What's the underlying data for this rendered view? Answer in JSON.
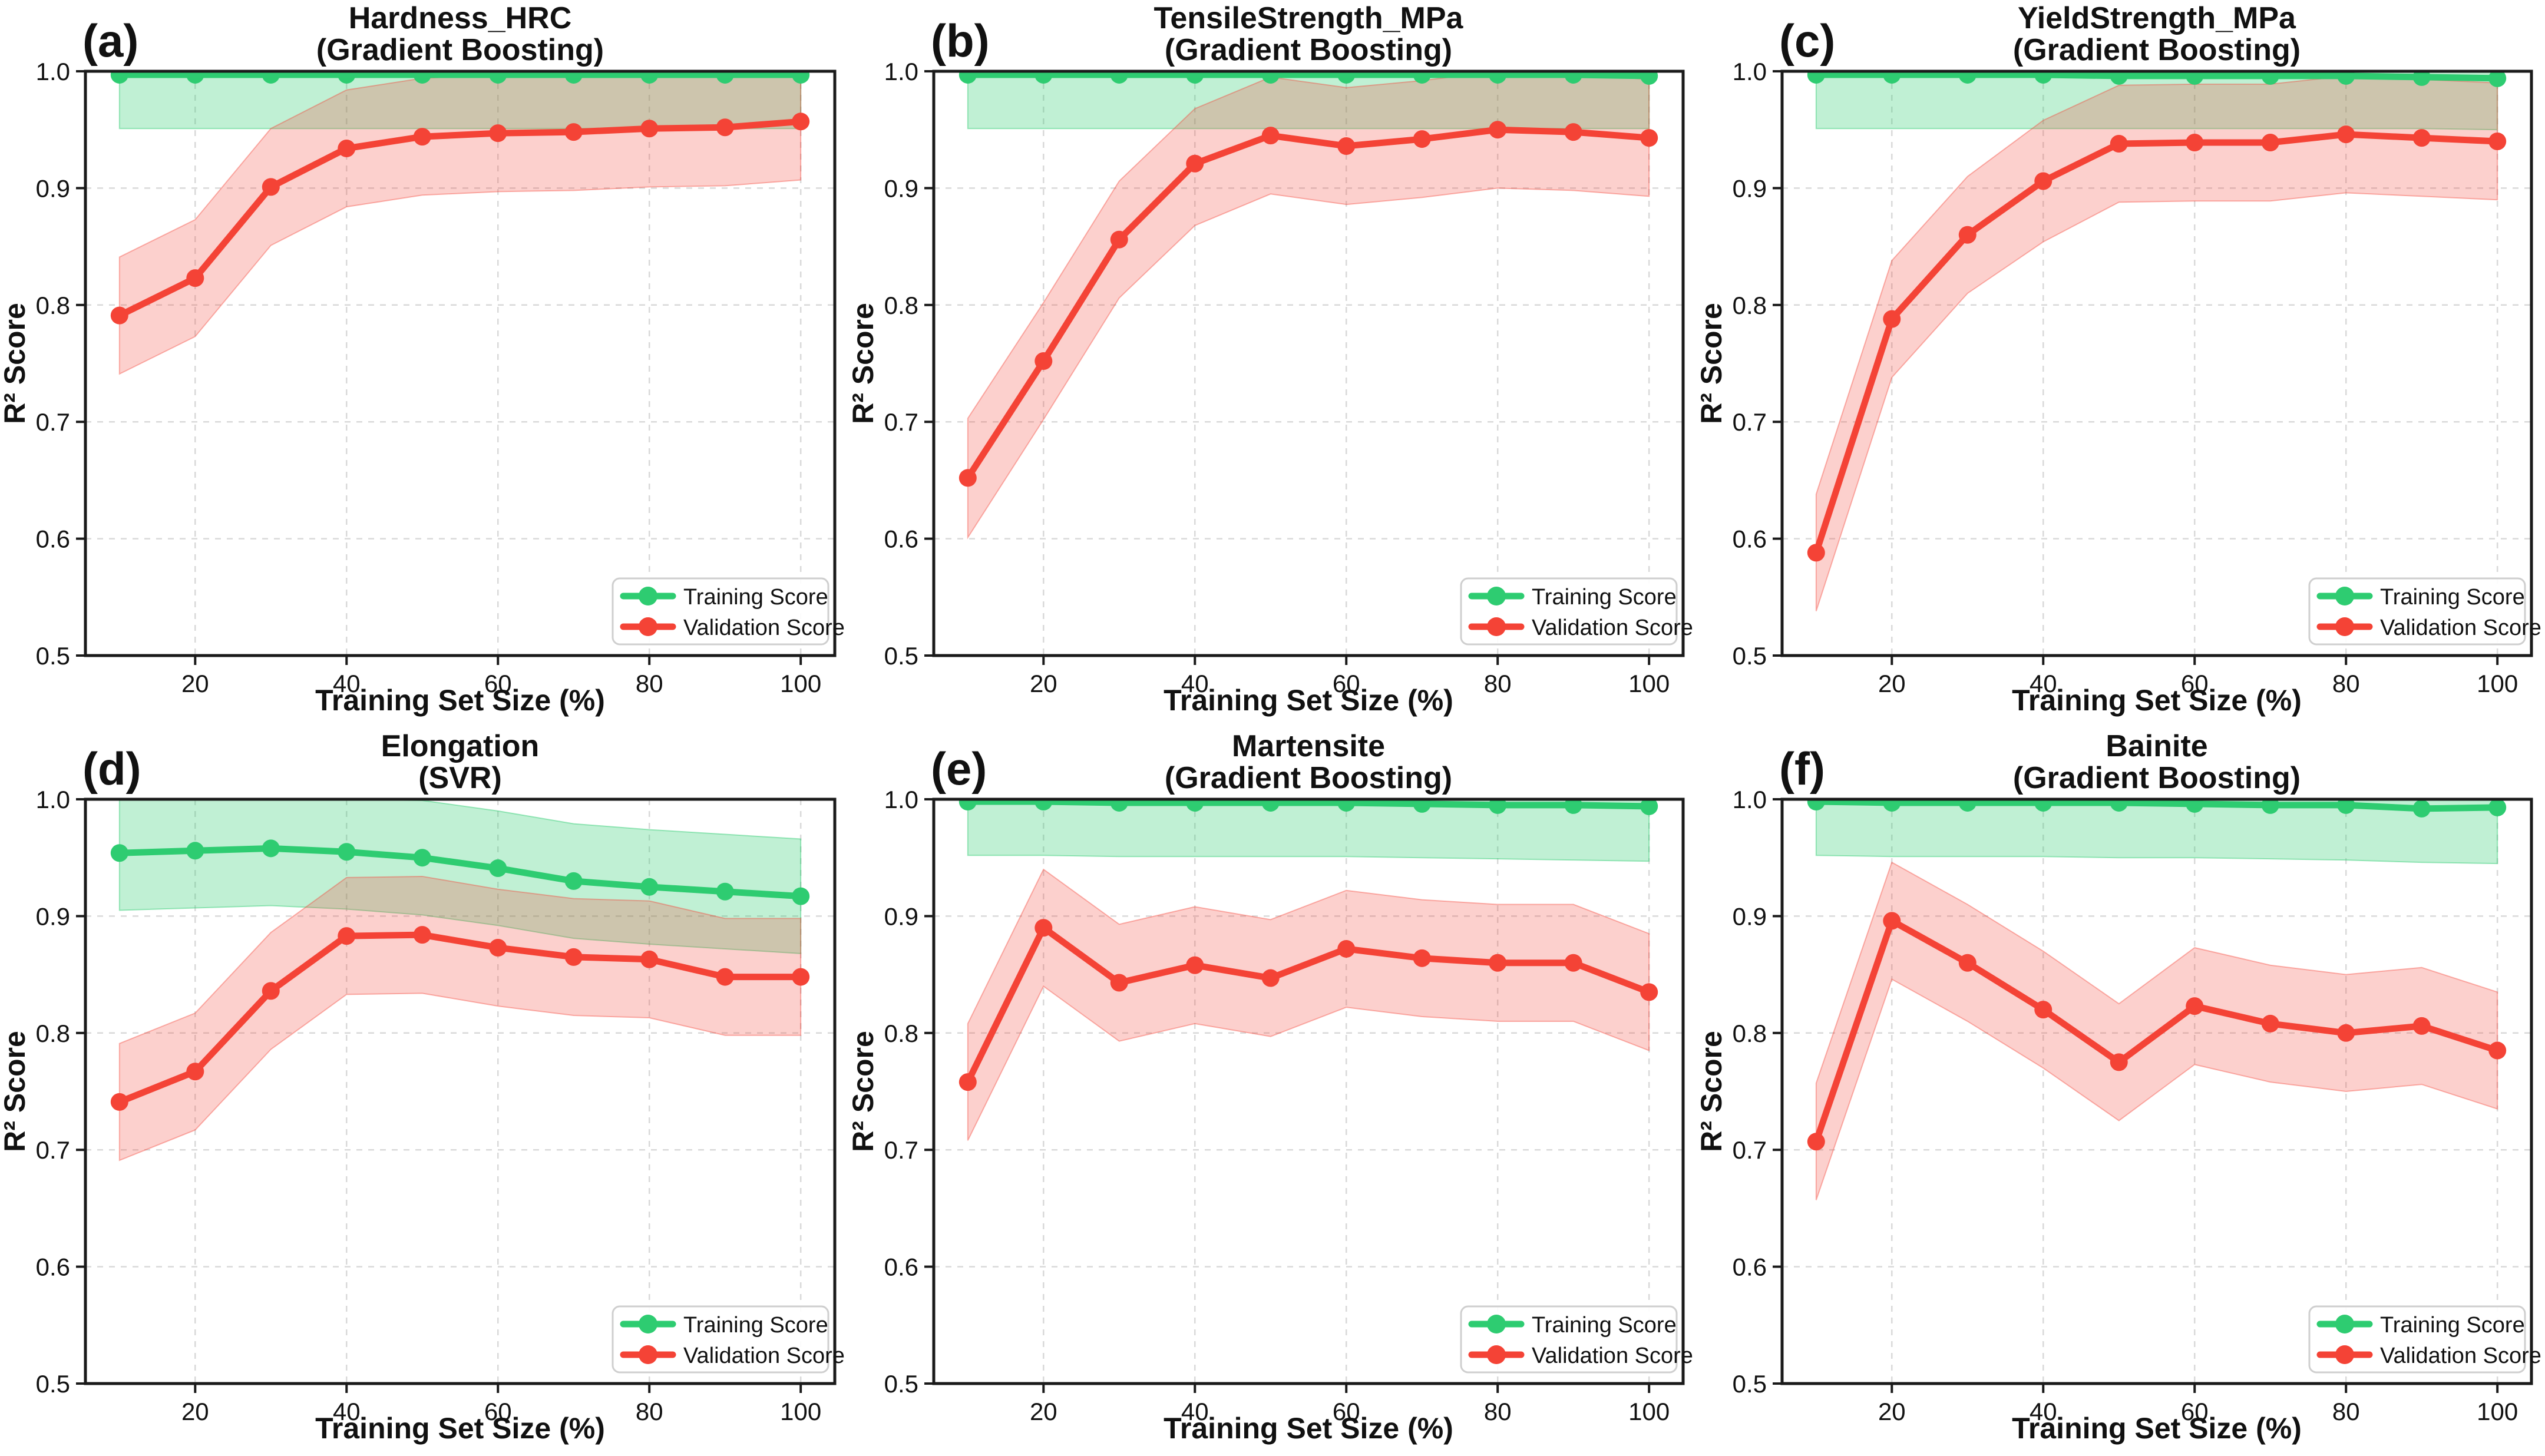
{
  "figure": {
    "background": "#ffffff",
    "colors": {
      "training": "#2ecc71",
      "validation": "#f44336",
      "training_band": "rgba(46,204,113,0.30)",
      "validation_band": "rgba(244,67,54,0.25)",
      "training_band_edge": "rgba(46,204,113,0.45)",
      "validation_band_edge": "rgba(244,67,54,0.40)",
      "grid": "#d9d9d9",
      "spine": "#1a1a1a",
      "legend_border": "#cfcfcf",
      "text": "#111111"
    }
  },
  "axes": {
    "xlabel": "Training Set Size (%)",
    "ylabel": "R² Score",
    "x_ticks": [
      20,
      40,
      60,
      80,
      100
    ],
    "y_ticks": [
      0.5,
      0.6,
      0.7,
      0.8,
      0.9,
      1.0
    ],
    "xlim": [
      5.5,
      104.5
    ],
    "ylim": [
      0.5,
      1.0
    ],
    "grid": true,
    "grid_style": "dashed",
    "legend_position": "lower right"
  },
  "legend": {
    "entries": [
      "Training Score",
      "Validation Score"
    ]
  },
  "x": [
    10,
    20,
    30,
    40,
    50,
    60,
    70,
    80,
    90,
    100
  ],
  "chart_data": [
    {
      "id": "a",
      "label": "(a)",
      "title": "Hardness_HRC",
      "subtitle": "(Gradient Boosting)",
      "type": "line",
      "series": [
        {
          "name": "Training Score",
          "color_key": "training",
          "values": [
            0.997,
            0.997,
            0.997,
            0.997,
            0.997,
            0.997,
            0.997,
            0.997,
            0.997,
            0.997
          ],
          "band_lower": [
            0.951,
            0.951,
            0.951,
            0.951,
            0.951,
            0.951,
            0.951,
            0.951,
            0.951,
            0.951
          ],
          "band_upper": [
            1.0,
            1.0,
            1.0,
            1.0,
            1.0,
            1.0,
            1.0,
            1.0,
            1.0,
            1.0
          ]
        },
        {
          "name": "Validation Score",
          "color_key": "validation",
          "values": [
            0.791,
            0.823,
            0.901,
            0.934,
            0.944,
            0.947,
            0.948,
            0.951,
            0.952,
            0.957
          ],
          "band_lower": [
            0.741,
            0.773,
            0.851,
            0.884,
            0.894,
            0.897,
            0.898,
            0.901,
            0.902,
            0.907
          ],
          "band_upper": [
            0.841,
            0.873,
            0.951,
            0.984,
            0.994,
            0.997,
            0.998,
            1.0,
            1.0,
            1.0
          ]
        }
      ]
    },
    {
      "id": "b",
      "label": "(b)",
      "title": "TensileStrength_MPa",
      "subtitle": "(Gradient Boosting)",
      "type": "line",
      "series": [
        {
          "name": "Training Score",
          "color_key": "training",
          "values": [
            0.997,
            0.997,
            0.997,
            0.997,
            0.997,
            0.997,
            0.997,
            0.997,
            0.997,
            0.996
          ],
          "band_lower": [
            0.951,
            0.951,
            0.951,
            0.951,
            0.951,
            0.951,
            0.951,
            0.951,
            0.951,
            0.951
          ],
          "band_upper": [
            1.0,
            1.0,
            1.0,
            1.0,
            1.0,
            1.0,
            1.0,
            1.0,
            1.0,
            1.0
          ]
        },
        {
          "name": "Validation Score",
          "color_key": "validation",
          "values": [
            0.652,
            0.752,
            0.856,
            0.921,
            0.945,
            0.936,
            0.942,
            0.95,
            0.948,
            0.943
          ],
          "band_lower": [
            0.601,
            0.702,
            0.806,
            0.868,
            0.895,
            0.886,
            0.892,
            0.9,
            0.898,
            0.893
          ],
          "band_upper": [
            0.703,
            0.802,
            0.906,
            0.968,
            0.995,
            0.986,
            0.992,
            1.0,
            0.998,
            0.993
          ]
        }
      ]
    },
    {
      "id": "c",
      "label": "(c)",
      "title": "YieldStrength_MPa",
      "subtitle": "(Gradient Boosting)",
      "type": "line",
      "series": [
        {
          "name": "Training Score",
          "color_key": "training",
          "values": [
            0.997,
            0.997,
            0.997,
            0.997,
            0.996,
            0.996,
            0.996,
            0.996,
            0.995,
            0.994
          ],
          "band_lower": [
            0.951,
            0.951,
            0.951,
            0.951,
            0.951,
            0.951,
            0.951,
            0.951,
            0.951,
            0.95
          ],
          "band_upper": [
            1.0,
            1.0,
            1.0,
            1.0,
            1.0,
            1.0,
            1.0,
            1.0,
            1.0,
            1.0
          ]
        },
        {
          "name": "Validation Score",
          "color_key": "validation",
          "values": [
            0.588,
            0.788,
            0.86,
            0.906,
            0.938,
            0.939,
            0.939,
            0.946,
            0.943,
            0.94
          ],
          "band_lower": [
            0.538,
            0.738,
            0.81,
            0.854,
            0.888,
            0.889,
            0.889,
            0.896,
            0.893,
            0.89
          ],
          "band_upper": [
            0.638,
            0.838,
            0.91,
            0.958,
            0.988,
            0.989,
            0.989,
            0.996,
            0.993,
            0.99
          ]
        }
      ]
    },
    {
      "id": "d",
      "label": "(d)",
      "title": "Elongation",
      "subtitle": "(SVR)",
      "type": "line",
      "series": [
        {
          "name": "Training Score",
          "color_key": "training",
          "values": [
            0.954,
            0.956,
            0.958,
            0.955,
            0.95,
            0.941,
            0.93,
            0.925,
            0.921,
            0.917
          ],
          "band_lower": [
            0.905,
            0.907,
            0.909,
            0.906,
            0.901,
            0.892,
            0.881,
            0.876,
            0.872,
            0.868
          ],
          "band_upper": [
            1.0,
            1.0,
            1.0,
            1.0,
            0.999,
            0.99,
            0.979,
            0.974,
            0.97,
            0.966
          ]
        },
        {
          "name": "Validation Score",
          "color_key": "validation",
          "values": [
            0.741,
            0.767,
            0.836,
            0.883,
            0.884,
            0.873,
            0.865,
            0.863,
            0.848,
            0.848
          ],
          "band_lower": [
            0.691,
            0.717,
            0.786,
            0.833,
            0.834,
            0.823,
            0.815,
            0.813,
            0.798,
            0.798
          ],
          "band_upper": [
            0.791,
            0.817,
            0.886,
            0.933,
            0.934,
            0.923,
            0.915,
            0.913,
            0.898,
            0.898
          ]
        }
      ]
    },
    {
      "id": "e",
      "label": "(e)",
      "title": "Martensite",
      "subtitle": "(Gradient Boosting)",
      "type": "line",
      "series": [
        {
          "name": "Training Score",
          "color_key": "training",
          "values": [
            0.998,
            0.998,
            0.997,
            0.997,
            0.997,
            0.997,
            0.996,
            0.995,
            0.995,
            0.994
          ],
          "band_lower": [
            0.952,
            0.952,
            0.951,
            0.951,
            0.951,
            0.951,
            0.95,
            0.949,
            0.948,
            0.947
          ],
          "band_upper": [
            1.0,
            1.0,
            1.0,
            1.0,
            1.0,
            1.0,
            1.0,
            1.0,
            1.0,
            1.0
          ]
        },
        {
          "name": "Validation Score",
          "color_key": "validation",
          "values": [
            0.758,
            0.89,
            0.843,
            0.858,
            0.847,
            0.872,
            0.864,
            0.86,
            0.86,
            0.835
          ],
          "band_lower": [
            0.708,
            0.84,
            0.793,
            0.808,
            0.797,
            0.822,
            0.814,
            0.81,
            0.81,
            0.785
          ],
          "band_upper": [
            0.808,
            0.94,
            0.893,
            0.908,
            0.897,
            0.922,
            0.914,
            0.91,
            0.91,
            0.885
          ]
        }
      ]
    },
    {
      "id": "f",
      "label": "(f)",
      "title": "Bainite",
      "subtitle": "(Gradient Boosting)",
      "type": "line",
      "series": [
        {
          "name": "Training Score",
          "color_key": "training",
          "values": [
            0.998,
            0.997,
            0.997,
            0.997,
            0.997,
            0.996,
            0.995,
            0.995,
            0.992,
            0.993
          ],
          "band_lower": [
            0.952,
            0.951,
            0.951,
            0.951,
            0.95,
            0.95,
            0.949,
            0.948,
            0.946,
            0.945
          ],
          "band_upper": [
            1.0,
            1.0,
            1.0,
            1.0,
            1.0,
            1.0,
            1.0,
            1.0,
            1.0,
            1.0
          ]
        },
        {
          "name": "Validation Score",
          "color_key": "validation",
          "values": [
            0.707,
            0.896,
            0.86,
            0.82,
            0.775,
            0.823,
            0.808,
            0.8,
            0.806,
            0.785
          ],
          "band_lower": [
            0.657,
            0.846,
            0.81,
            0.77,
            0.725,
            0.773,
            0.758,
            0.75,
            0.756,
            0.735
          ],
          "band_upper": [
            0.757,
            0.946,
            0.91,
            0.87,
            0.825,
            0.873,
            0.858,
            0.85,
            0.856,
            0.835
          ]
        }
      ]
    }
  ]
}
